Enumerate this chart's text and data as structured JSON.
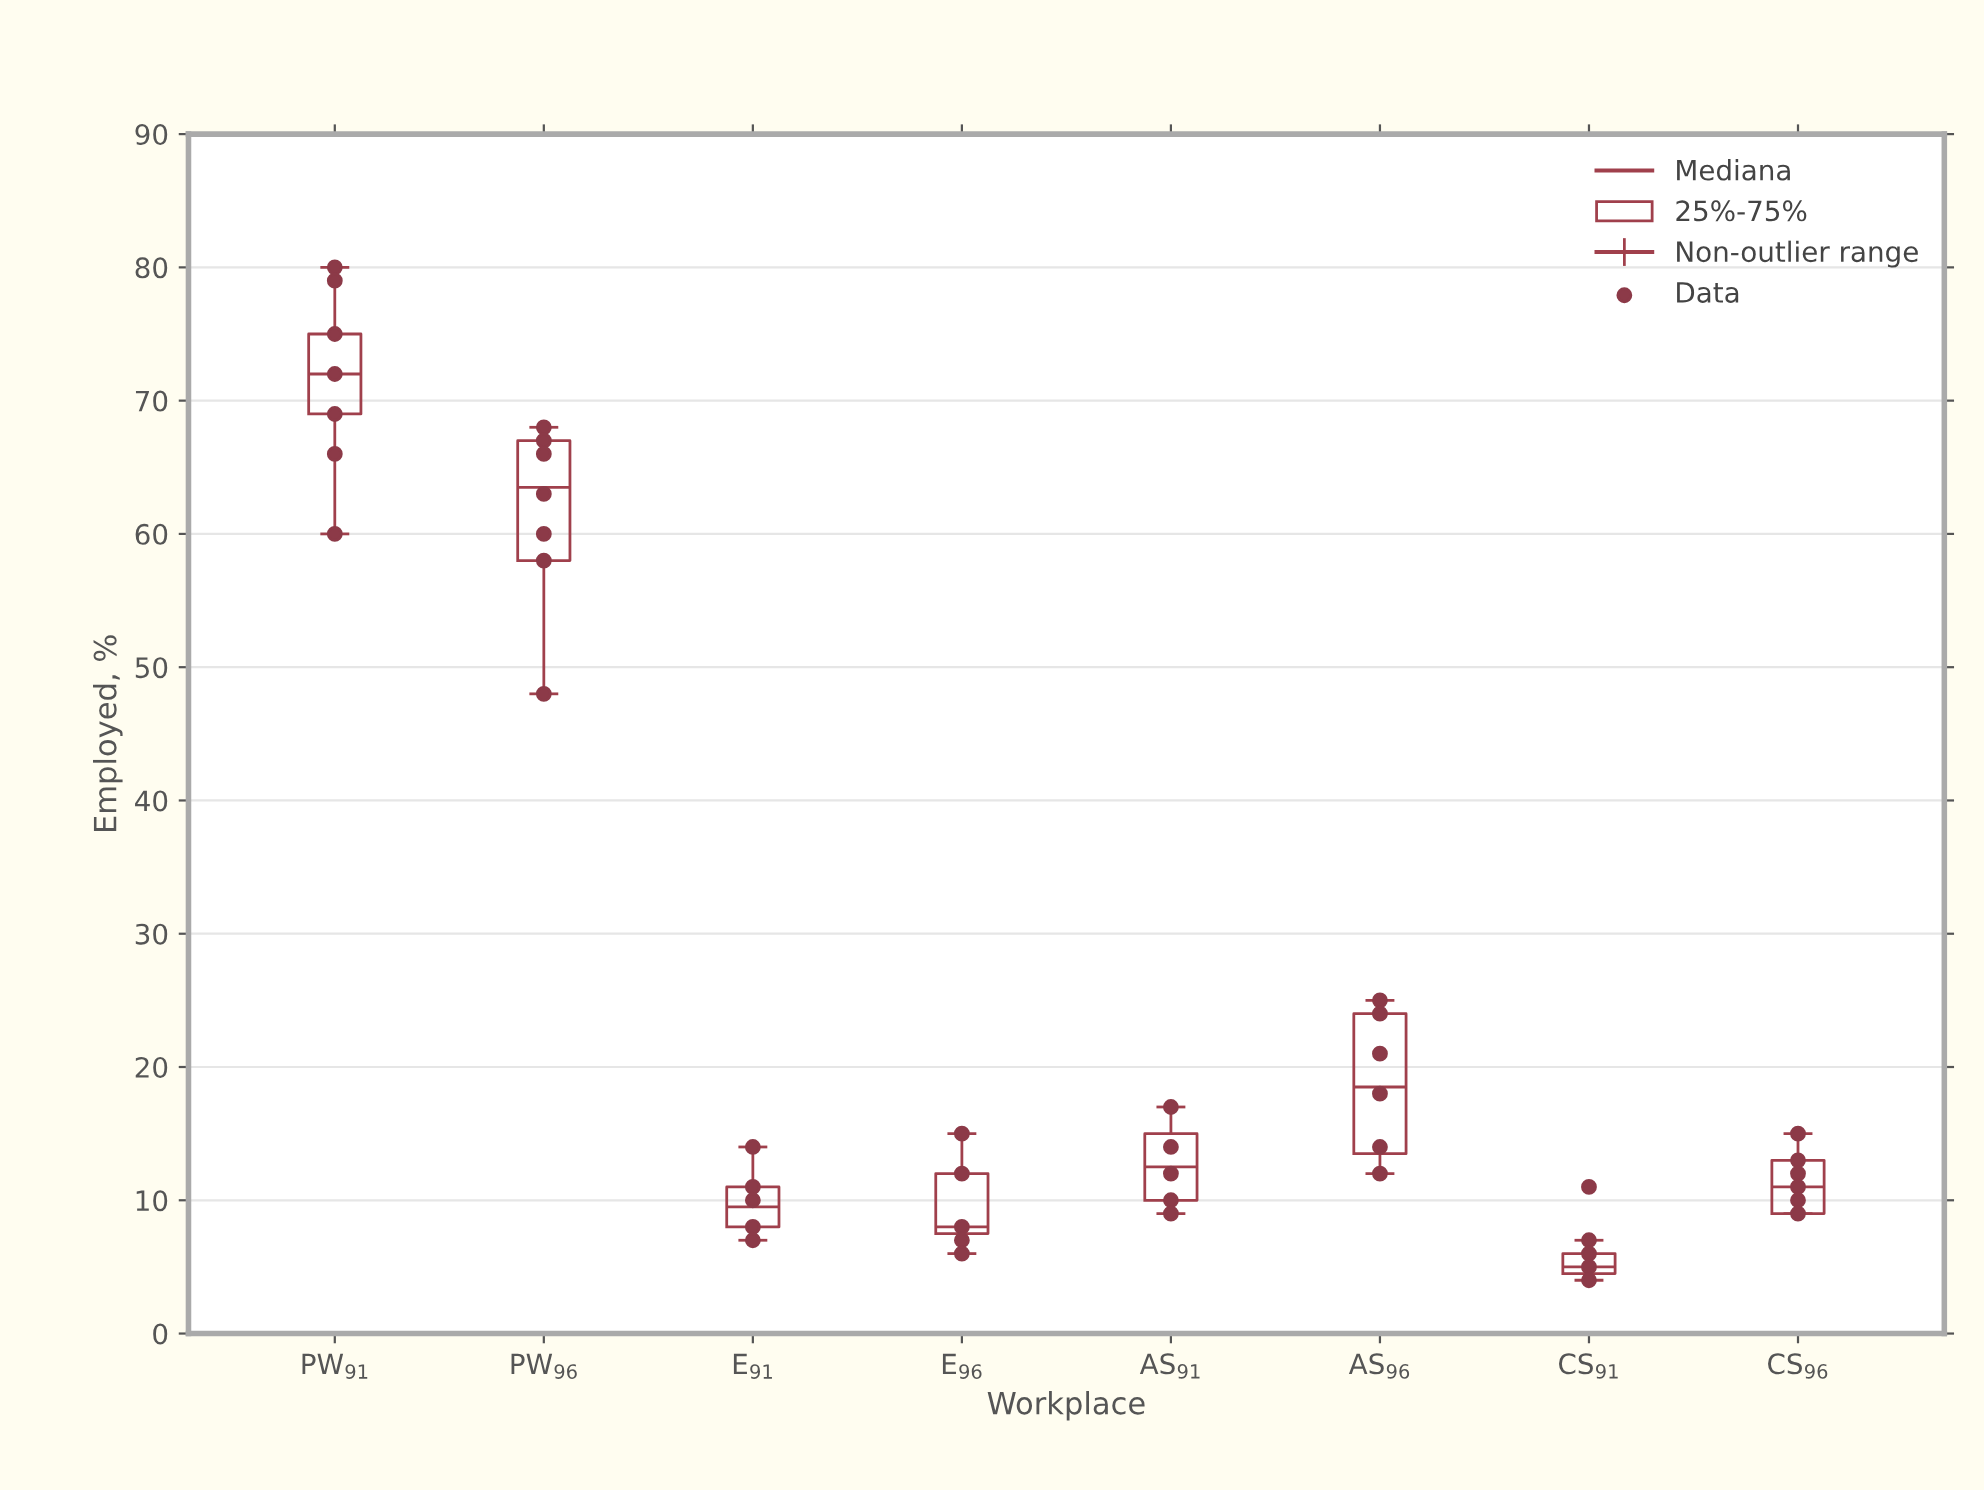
{
  "chart_data": {
    "type": "box",
    "xlabel": "Workplace",
    "ylabel": "Employed, %",
    "categories": [
      "PW$_{91}$",
      "PW$_{96}$",
      "E$_{91}$",
      "E$_{96}$",
      "AS$_{91}$",
      "AS$_{96}$",
      "CS$_{91}$",
      "CS$_{96}$"
    ],
    "series": [
      {
        "name": "25%-75%",
        "color": "#a0404c",
        "boxes": [
          {
            "low": 60,
            "q1": 69,
            "median": 72,
            "q3": 75,
            "high": 80
          },
          {
            "low": 48,
            "q1": 58,
            "median": 63.5,
            "q3": 67,
            "high": 68
          },
          {
            "low": 7,
            "q1": 8,
            "median": 9.5,
            "q3": 11,
            "high": 14
          },
          {
            "low": 6,
            "q1": 7.5,
            "median": 8,
            "q3": 12,
            "high": 15
          },
          {
            "low": 9,
            "q1": 10,
            "median": 12.5,
            "q3": 15,
            "high": 17
          },
          {
            "low": 12,
            "q1": 13.5,
            "median": 18.5,
            "q3": 24,
            "high": 25
          },
          {
            "low": 4,
            "q1": 4.5,
            "median": 5,
            "q3": 6,
            "high": 7
          },
          {
            "low": 9,
            "q1": 9,
            "median": 11,
            "q3": 13,
            "high": 15
          }
        ]
      },
      {
        "type": "scatter",
        "name": "Data",
        "color": "#8c3a48",
        "marker": "circle",
        "x": [
          "PW$_{91}$",
          "PW$_{91}$",
          "PW$_{91}$",
          "PW$_{91}$",
          "PW$_{91}$",
          "PW$_{91}$",
          "PW$_{91}$",
          "PW$_{96}$",
          "PW$_{96}$",
          "PW$_{96}$",
          "PW$_{96}$",
          "PW$_{96}$",
          "PW$_{96}$",
          "PW$_{96}$",
          "E$_{91}$",
          "E$_{91}$",
          "E$_{91}$",
          "E$_{91}$",
          "E$_{91}$",
          "E$_{96}$",
          "E$_{96}$",
          "E$_{96}$",
          "E$_{96}$",
          "E$_{96}$",
          "AS$_{91}$",
          "AS$_{91}$",
          "AS$_{91}$",
          "AS$_{91}$",
          "AS$_{91}$",
          "AS$_{96}$",
          "AS$_{96}$",
          "AS$_{96}$",
          "AS$_{96}$",
          "AS$_{96}$",
          "AS$_{96}$",
          "CS$_{91}$",
          "CS$_{91}$",
          "CS$_{91}$",
          "CS$_{91}$",
          "CS$_{91}$",
          "CS$_{96}$",
          "CS$_{96}$",
          "CS$_{96}$",
          "CS$_{96}$",
          "CS$_{96}$",
          "CS$_{96}$"
        ],
        "values": [
          80,
          79,
          75,
          72,
          69,
          66,
          60,
          68,
          67,
          66,
          63,
          60,
          58,
          48,
          14,
          11,
          10,
          8,
          7,
          15,
          12,
          8,
          7,
          6,
          17,
          14,
          12,
          10,
          9,
          25,
          24,
          21,
          18,
          14,
          12,
          11,
          7,
          6,
          5,
          4,
          15,
          13,
          12,
          11,
          10,
          9
        ]
      }
    ],
    "annotations": [
      "Mediana",
      "Non-outlier range"
    ],
    "ylim": [
      0,
      90
    ],
    "yticks": [
      0,
      10,
      20,
      30,
      40,
      50,
      60,
      70,
      80,
      90
    ],
    "grid": "y",
    "legend": "top right"
  }
}
